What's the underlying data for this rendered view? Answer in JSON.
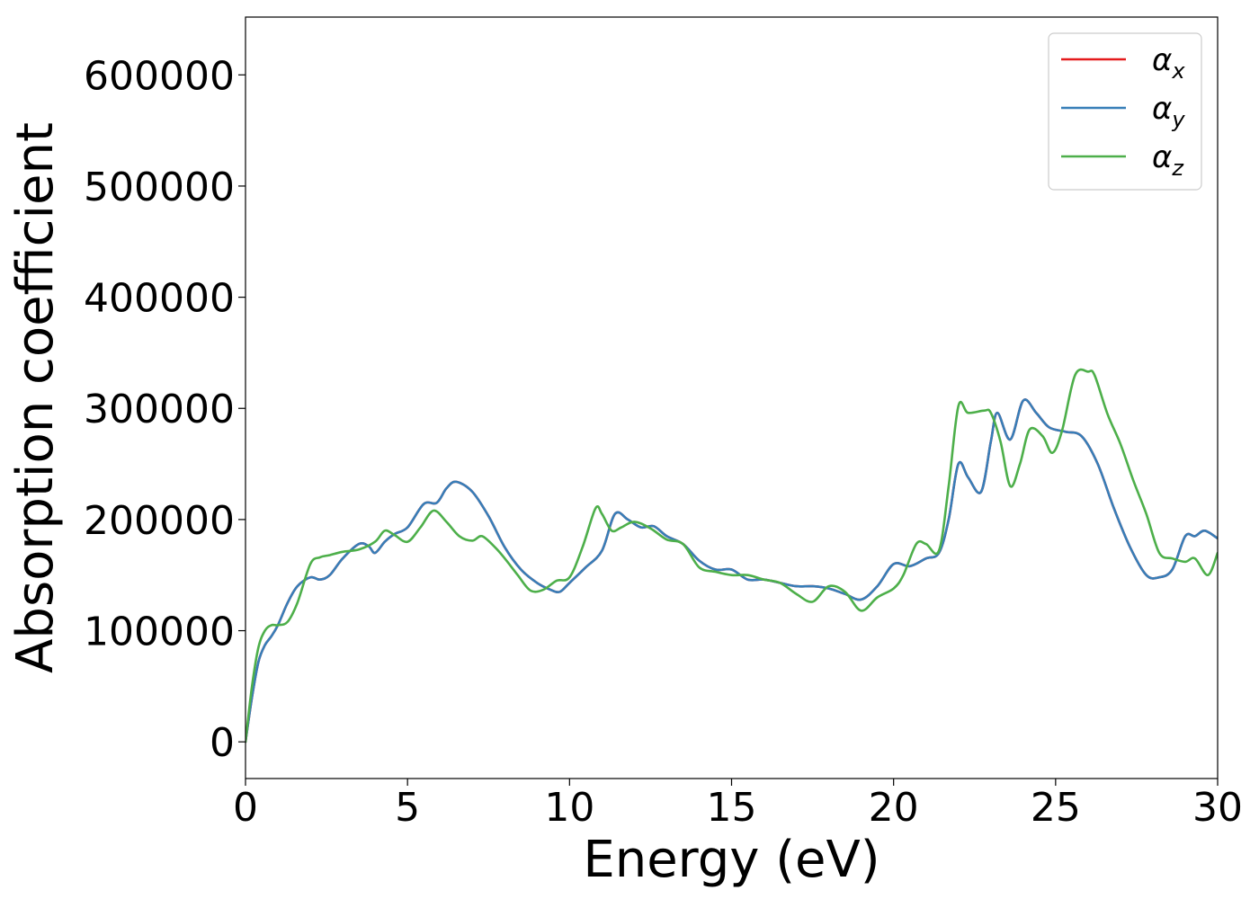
{
  "chart_data": {
    "type": "line",
    "title": "",
    "xlabel": "Energy (eV)",
    "ylabel": "Absorption coefficient",
    "xlim": [
      0,
      30
    ],
    "ylim": [
      -33000,
      652000
    ],
    "xticks": [
      0,
      5,
      10,
      15,
      20,
      25,
      30
    ],
    "xtick_labels": [
      "0",
      "5",
      "10",
      "15",
      "20",
      "25",
      "30"
    ],
    "yticks": [
      0,
      100000,
      200000,
      300000,
      400000,
      500000,
      600000
    ],
    "ytick_labels": [
      "0",
      "100000",
      "200000",
      "300000",
      "400000",
      "500000",
      "600000"
    ],
    "grid": false,
    "legend_position": "top-right",
    "series": [
      {
        "name": "α_x",
        "legend_base": "α",
        "legend_sub": "x",
        "color": "#e41a1c",
        "x": [
          0,
          0.2,
          0.4,
          0.6,
          0.8,
          1.0,
          1.3,
          1.6,
          2.0,
          2.3,
          2.6,
          3.0,
          3.5,
          3.8,
          4.0,
          4.3,
          4.6,
          5.0,
          5.5,
          5.9,
          6.2,
          6.5,
          7.0,
          7.5,
          8.0,
          8.5,
          9.0,
          9.4,
          9.7,
          10.0,
          10.5,
          11.0,
          11.4,
          11.8,
          12.2,
          12.6,
          13.0,
          13.5,
          14.0,
          14.5,
          15.0,
          15.5,
          16.0,
          16.5,
          17.0,
          17.5,
          18.0,
          18.5,
          19.0,
          19.5,
          20.0,
          20.5,
          21.0,
          21.4,
          21.7,
          22.0,
          22.3,
          22.7,
          23.0,
          23.2,
          23.6,
          24.0,
          24.4,
          24.8,
          25.3,
          25.8,
          26.3,
          26.8,
          27.3,
          27.8,
          28.2,
          28.6,
          29.0,
          29.3,
          29.6,
          30.0
        ],
        "values": [
          0,
          40000,
          72000,
          87000,
          95000,
          105000,
          125000,
          140000,
          148000,
          146000,
          150000,
          165000,
          178000,
          176000,
          170000,
          180000,
          187000,
          193000,
          214000,
          215000,
          228000,
          234000,
          225000,
          203000,
          175000,
          155000,
          143000,
          137000,
          135000,
          143000,
          157000,
          172000,
          205000,
          200000,
          193000,
          194000,
          185000,
          178000,
          163000,
          155000,
          155000,
          146000,
          146000,
          143000,
          140000,
          140000,
          138000,
          133000,
          128000,
          140000,
          160000,
          158000,
          165000,
          170000,
          200000,
          250000,
          238000,
          225000,
          270000,
          296000,
          272000,
          307000,
          296000,
          283000,
          279000,
          275000,
          250000,
          210000,
          175000,
          150000,
          148000,
          155000,
          185000,
          185000,
          190000,
          183000
        ]
      },
      {
        "name": "α_y",
        "legend_base": "α",
        "legend_sub": "y",
        "color": "#377eb8",
        "x": [
          0,
          0.2,
          0.4,
          0.6,
          0.8,
          1.0,
          1.3,
          1.6,
          2.0,
          2.3,
          2.6,
          3.0,
          3.5,
          3.8,
          4.0,
          4.3,
          4.6,
          5.0,
          5.5,
          5.9,
          6.2,
          6.5,
          7.0,
          7.5,
          8.0,
          8.5,
          9.0,
          9.4,
          9.7,
          10.0,
          10.5,
          11.0,
          11.4,
          11.8,
          12.2,
          12.6,
          13.0,
          13.5,
          14.0,
          14.5,
          15.0,
          15.5,
          16.0,
          16.5,
          17.0,
          17.5,
          18.0,
          18.5,
          19.0,
          19.5,
          20.0,
          20.5,
          21.0,
          21.4,
          21.7,
          22.0,
          22.3,
          22.7,
          23.0,
          23.2,
          23.6,
          24.0,
          24.4,
          24.8,
          25.3,
          25.8,
          26.3,
          26.8,
          27.3,
          27.8,
          28.2,
          28.6,
          29.0,
          29.3,
          29.6,
          30.0
        ],
        "values": [
          0,
          40000,
          72000,
          87000,
          95000,
          105000,
          125000,
          140000,
          148000,
          146000,
          150000,
          165000,
          178000,
          176000,
          170000,
          180000,
          187000,
          193000,
          214000,
          215000,
          228000,
          234000,
          225000,
          203000,
          175000,
          155000,
          143000,
          137000,
          135000,
          143000,
          157000,
          172000,
          205000,
          200000,
          193000,
          194000,
          185000,
          178000,
          163000,
          155000,
          155000,
          146000,
          146000,
          143000,
          140000,
          140000,
          138000,
          133000,
          128000,
          140000,
          160000,
          158000,
          165000,
          170000,
          200000,
          250000,
          238000,
          225000,
          270000,
          296000,
          272000,
          307000,
          296000,
          283000,
          279000,
          275000,
          250000,
          210000,
          175000,
          150000,
          148000,
          155000,
          185000,
          185000,
          190000,
          183000
        ]
      },
      {
        "name": "α_z",
        "legend_base": "α",
        "legend_sub": "z",
        "color": "#4daf4a",
        "x": [
          0,
          0.2,
          0.4,
          0.6,
          0.8,
          1.0,
          1.3,
          1.6,
          2.0,
          2.3,
          2.6,
          3.0,
          3.5,
          4.0,
          4.3,
          4.6,
          5.0,
          5.4,
          5.8,
          6.2,
          6.6,
          7.0,
          7.3,
          7.7,
          8.0,
          8.4,
          8.8,
          9.2,
          9.6,
          10.0,
          10.4,
          10.8,
          11.0,
          11.3,
          11.6,
          12.0,
          12.5,
          13.0,
          13.5,
          14.0,
          14.5,
          15.0,
          15.5,
          16.0,
          16.5,
          17.0,
          17.5,
          18.0,
          18.5,
          19.0,
          19.5,
          20.0,
          20.3,
          20.7,
          21.0,
          21.4,
          21.7,
          22.0,
          22.3,
          22.8,
          23.0,
          23.3,
          23.6,
          23.9,
          24.2,
          24.6,
          24.9,
          25.2,
          25.6,
          26.0,
          26.2,
          26.6,
          27.0,
          27.4,
          27.8,
          28.2,
          28.6,
          29.0,
          29.3,
          29.7,
          30.0
        ],
        "values": [
          0,
          50000,
          85000,
          100000,
          105000,
          105000,
          108000,
          125000,
          160000,
          166000,
          168000,
          171000,
          173000,
          180000,
          190000,
          186000,
          180000,
          193000,
          208000,
          198000,
          185000,
          181000,
          185000,
          175000,
          165000,
          150000,
          136000,
          137000,
          145000,
          148000,
          175000,
          210000,
          205000,
          190000,
          193000,
          198000,
          192000,
          182000,
          178000,
          157000,
          153000,
          150000,
          150000,
          146000,
          143000,
          133000,
          126000,
          140000,
          135000,
          118000,
          130000,
          138000,
          150000,
          178000,
          178000,
          172000,
          230000,
          302000,
          296000,
          298000,
          296000,
          270000,
          230000,
          250000,
          281000,
          275000,
          260000,
          280000,
          330000,
          333000,
          330000,
          295000,
          268000,
          235000,
          205000,
          170000,
          165000,
          162000,
          165000,
          150000,
          170000
        ]
      }
    ]
  }
}
